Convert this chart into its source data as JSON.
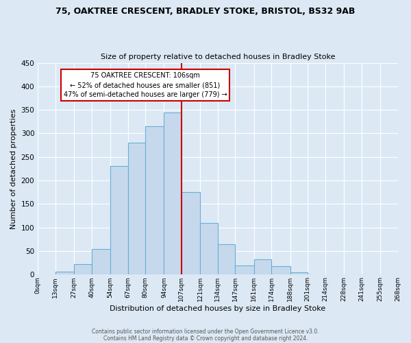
{
  "title1": "75, OAKTREE CRESCENT, BRADLEY STOKE, BRISTOL, BS32 9AB",
  "title2": "Size of property relative to detached houses in Bradley Stoke",
  "xlabel": "Distribution of detached houses by size in Bradley Stoke",
  "ylabel": "Number of detached properties",
  "bar_left_edges": [
    0,
    13,
    27,
    40,
    54,
    67,
    80,
    94,
    107,
    121,
    134,
    147,
    161,
    174,
    188,
    201,
    214,
    228,
    241,
    255
  ],
  "bar_widths": [
    13,
    14,
    13,
    14,
    13,
    13,
    14,
    13,
    14,
    13,
    13,
    14,
    13,
    14,
    13,
    13,
    14,
    13,
    14,
    13
  ],
  "bar_heights": [
    1,
    6,
    22,
    55,
    230,
    280,
    315,
    345,
    175,
    110,
    65,
    20,
    33,
    18,
    5,
    1,
    1,
    1,
    1,
    1
  ],
  "bar_color": "#c6d9ec",
  "bar_edgecolor": "#6aaed6",
  "tick_labels": [
    "0sqm",
    "13sqm",
    "27sqm",
    "40sqm",
    "54sqm",
    "67sqm",
    "80sqm",
    "94sqm",
    "107sqm",
    "121sqm",
    "134sqm",
    "147sqm",
    "161sqm",
    "174sqm",
    "188sqm",
    "201sqm",
    "214sqm",
    "228sqm",
    "241sqm",
    "255sqm",
    "268sqm"
  ],
  "tick_positions": [
    0,
    13,
    27,
    40,
    54,
    67,
    80,
    94,
    107,
    121,
    134,
    147,
    161,
    174,
    188,
    201,
    214,
    228,
    241,
    255,
    268
  ],
  "vline_x": 107,
  "vline_color": "#cc0000",
  "ylim": [
    0,
    450
  ],
  "yticks": [
    0,
    50,
    100,
    150,
    200,
    250,
    300,
    350,
    400,
    450
  ],
  "annotation_title": "75 OAKTREE CRESCENT: 106sqm",
  "annotation_line1": "← 52% of detached houses are smaller (851)",
  "annotation_line2": "47% of semi-detached houses are larger (779) →",
  "annotation_box_facecolor": "#ffffff",
  "annotation_box_edgecolor": "#cc0000",
  "footer1": "Contains HM Land Registry data © Crown copyright and database right 2024.",
  "footer2": "Contains public sector information licensed under the Open Government Licence v3.0.",
  "bg_color": "#dce9f5",
  "plot_bg_color": "#dce9f5",
  "grid_color": "#ffffff"
}
